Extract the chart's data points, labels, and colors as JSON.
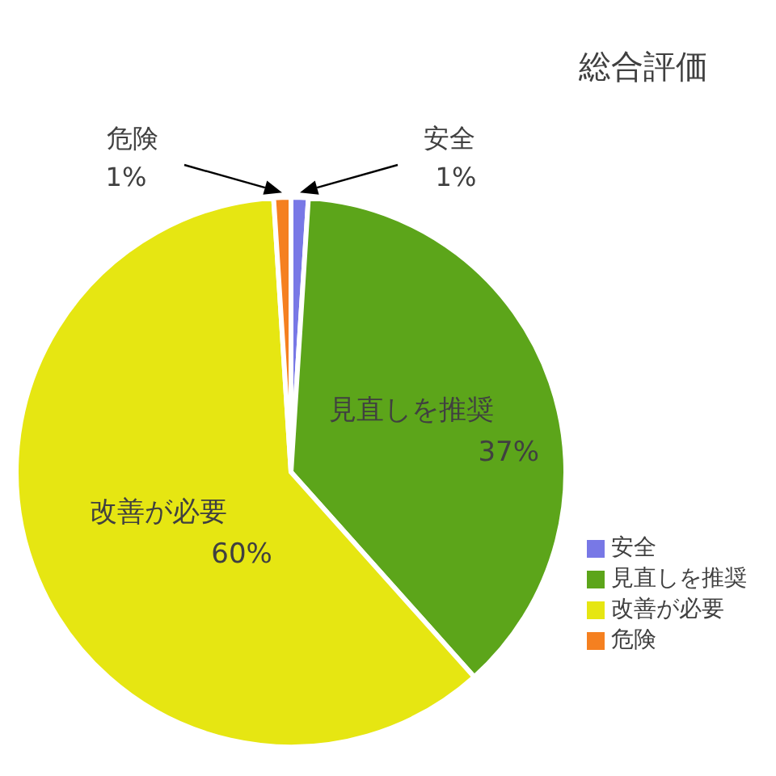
{
  "chart_data": {
    "type": "pie",
    "title": "総合評価",
    "categories": [
      "安全",
      "見直しを推奨",
      "改善が必要",
      "危険"
    ],
    "values": [
      1,
      37,
      60,
      1
    ],
    "colors": [
      "#7878e6",
      "#5ca51a",
      "#e6e612",
      "#f58020"
    ],
    "value_labels": [
      "1%",
      "37%",
      "60%",
      "1%"
    ],
    "legend": "bottom right"
  }
}
